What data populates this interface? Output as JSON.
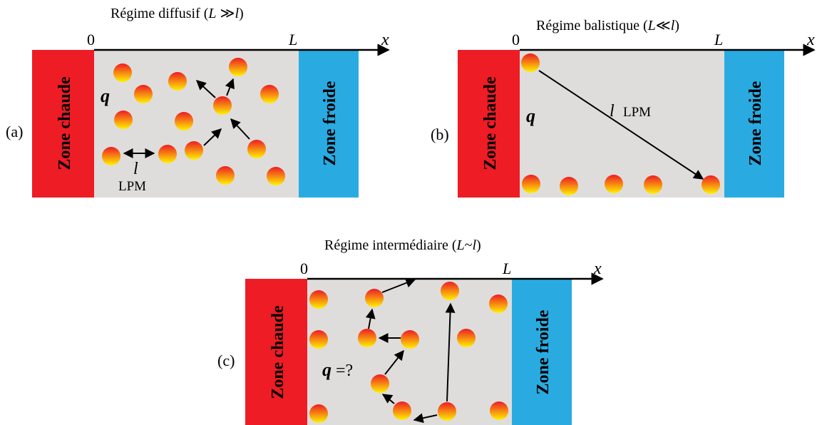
{
  "colors": {
    "hot": "#ee1c24",
    "cold": "#29abe2",
    "medium": "#dedddc",
    "particle_top": "#ee1c24",
    "particle_bottom": "#fff200"
  },
  "panels": {
    "a": {
      "title": "Régime diffusif (",
      "title_var": "L",
      "title_op": " ≫",
      "title_var2": "l",
      "title_close": ")",
      "label": "(a)",
      "axis_zero": "0",
      "axis_L": "L",
      "axis_x": "x",
      "hot_zone": "Zone chaude",
      "cold_zone": "Zone froide",
      "flux": "q",
      "mfp_symbol": "l",
      "mfp_text": "LPM"
    },
    "b": {
      "title": "Régime balistique (",
      "title_var": "L",
      "title_op": "≪",
      "title_var2": "l",
      "title_close": ")",
      "label": "(b)",
      "axis_zero": "0",
      "axis_L": "L",
      "axis_x": "x",
      "hot_zone": "Zone chaude",
      "cold_zone": "Zone froide",
      "flux": "q",
      "mfp_symbol": "l",
      "mfp_text": "LPM"
    },
    "c": {
      "title": "Régime intermédiaire (",
      "title_var": "L",
      "title_op": "~",
      "title_var2": "l",
      "title_close": ")",
      "label": "(c)",
      "axis_zero": "0",
      "axis_L": "L",
      "axis_x": "x",
      "hot_zone": "Zone chaude",
      "cold_zone": "Zone froide",
      "flux": "q",
      "flux_suffix": " =?"
    }
  }
}
